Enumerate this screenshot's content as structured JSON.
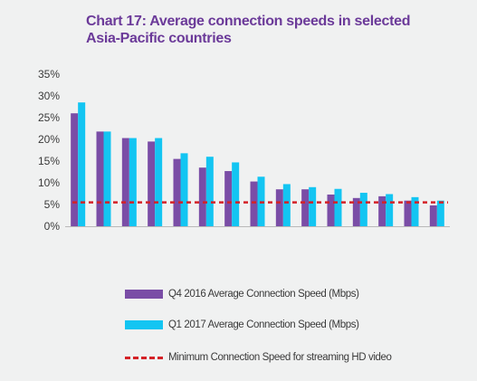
{
  "chart_data": {
    "type": "bar",
    "title_lines": [
      "Chart 17: Average connection speeds in selected",
      "Asia-Pacific countries"
    ],
    "xlabel": "",
    "ylabel": "",
    "ylim": [
      0,
      35
    ],
    "yticks": [
      "0%",
      "5%",
      "10%",
      "15%",
      "20%",
      "25%",
      "30%",
      "35%"
    ],
    "ytick_values": [
      0,
      5,
      10,
      15,
      20,
      25,
      30,
      35
    ],
    "grid": false,
    "legend_position": "bottom",
    "bar_count": 15,
    "series": [
      {
        "name": "Q4 2016 Average Connection Speed (Mbps)",
        "color": "#7a4da6",
        "values": [
          26.0,
          21.8,
          20.3,
          19.5,
          15.5,
          13.5,
          12.7,
          10.3,
          8.5,
          8.5,
          7.3,
          6.5,
          6.9,
          5.9,
          4.8
        ]
      },
      {
        "name": "Q1 2017 Average Connection Speed (Mbps)",
        "color": "#13c5f2",
        "values": [
          28.5,
          21.8,
          20.3,
          20.3,
          16.8,
          16.0,
          14.7,
          11.4,
          9.7,
          9.0,
          8.6,
          7.7,
          7.4,
          6.7,
          5.9
        ]
      }
    ],
    "reference_line": {
      "name": "Minimum Connection Speed for streaming HD video",
      "value": 5.5,
      "color": "#d42127",
      "style": "dashed"
    }
  }
}
